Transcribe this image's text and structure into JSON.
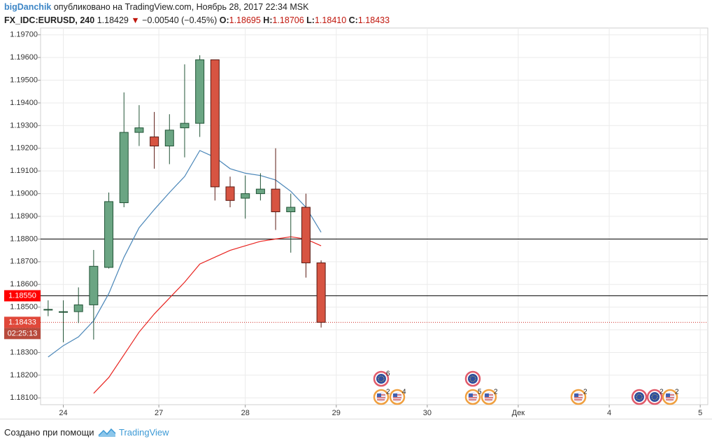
{
  "header": {
    "author": "bigDanchik",
    "published": "опубликовано на TradingView.com, Ноябрь 28, 2017 22:34 MSK",
    "symbol": "FX_IDC:EURUSD, 240",
    "last": "1.18429",
    "arrow": "▼",
    "change": "−0.00540 (−0.45%)",
    "open_label": "O:",
    "open": "1.18695",
    "high_label": "H:",
    "high": "1.18706",
    "low_label": "L:",
    "low": "1.18410",
    "close_label": "C:",
    "close": "1.18433"
  },
  "chart_data": {
    "type": "candlestick",
    "open": [
      1.1849,
      1.1848,
      1.1848,
      1.1851,
      1.18675,
      1.1896,
      1.1927,
      1.1925,
      1.1921,
      1.1929,
      1.1931,
      1.1959,
      1.1903,
      1.1898,
      1.19,
      1.1902,
      1.1892,
      1.1894,
      1.18695
    ],
    "high": [
      1.1853,
      1.1853,
      1.18587,
      1.18752,
      1.19005,
      1.19446,
      1.1939,
      1.1936,
      1.1935,
      1.1957,
      1.1961,
      1.1959,
      1.19075,
      1.1908,
      1.1909,
      1.192,
      1.19,
      1.19,
      1.18706
    ],
    "low": [
      1.1846,
      1.18345,
      1.1843,
      1.18357,
      1.1867,
      1.1894,
      1.1921,
      1.1911,
      1.1913,
      1.1916,
      1.1925,
      1.1897,
      1.1894,
      1.1889,
      1.1897,
      1.1884,
      1.1874,
      1.1863,
      1.1841
    ],
    "close": [
      1.1849,
      1.1848,
      1.1851,
      1.1868,
      1.18965,
      1.1927,
      1.1929,
      1.1921,
      1.1928,
      1.1931,
      1.1959,
      1.1903,
      1.1897,
      1.19,
      1.1902,
      1.1892,
      1.1894,
      1.18695,
      1.18433
    ],
    "up_color": "#6ba583",
    "up_border": "#225437",
    "down_color": "#d75442",
    "down_border": "#5b1a13",
    "series": [
      {
        "color": "#4a86b8",
        "values": [
          1.1828,
          1.1833,
          1.18369,
          1.1844,
          1.1856,
          1.1872,
          1.1885,
          1.1893,
          1.19005,
          1.19076,
          1.1919,
          1.1916,
          1.1911,
          1.1909,
          1.1908,
          1.1906,
          1.1901,
          1.1894,
          1.1883
        ]
      },
      {
        "color": "#e8231f",
        "values": [
          null,
          null,
          null,
          1.1812,
          1.1819,
          1.1829,
          1.1839,
          1.1847,
          1.1854,
          1.1861,
          1.1869,
          1.1872,
          1.1875,
          1.1877,
          1.1879,
          1.188,
          1.1881,
          1.188,
          1.1877
        ]
      }
    ],
    "hlines": [
      {
        "value": 1.188,
        "color": "#000000"
      },
      {
        "value": 1.1855,
        "color": "#000000"
      }
    ],
    "last_line": {
      "value": 1.18433,
      "color": "#d0302a"
    },
    "price_labels": [
      {
        "value": 1.1855,
        "label": "1.18550",
        "color": "#ff0000"
      },
      {
        "value": 1.18433,
        "label": "1.18433",
        "color": "#e0483a"
      }
    ],
    "countdown": "02:25:13",
    "ylim": [
      1.1807,
      1.1973
    ],
    "yticks": [
      {
        "value": 1.181,
        "label": "1.18100"
      },
      {
        "value": 1.182,
        "label": "1.18200"
      },
      {
        "value": 1.183,
        "label": "1.18300"
      },
      {
        "value": 1.184,
        "label": "1.18400"
      },
      {
        "value": 1.185,
        "label": "1.18500"
      },
      {
        "value": 1.186,
        "label": "1.18600"
      },
      {
        "value": 1.187,
        "label": "1.18700"
      },
      {
        "value": 1.188,
        "label": "1.18800"
      },
      {
        "value": 1.189,
        "label": "1.18900"
      },
      {
        "value": 1.19,
        "label": "1.19000"
      },
      {
        "value": 1.191,
        "label": "1.19100"
      },
      {
        "value": 1.192,
        "label": "1.19200"
      },
      {
        "value": 1.193,
        "label": "1.19300"
      },
      {
        "value": 1.194,
        "label": "1.19400"
      },
      {
        "value": 1.195,
        "label": "1.19500"
      },
      {
        "value": 1.196,
        "label": "1.19600"
      },
      {
        "value": 1.197,
        "label": "1.19700"
      }
    ],
    "xlim": [
      -0.5,
      43.5
    ],
    "xticks": [
      {
        "value": 1,
        "label": "24"
      },
      {
        "value": 7.3,
        "label": "27"
      },
      {
        "value": 13,
        "label": "28"
      },
      {
        "value": 19,
        "label": "29"
      },
      {
        "value": 25,
        "label": "30"
      },
      {
        "value": 31,
        "label": "Дек"
      },
      {
        "value": 37,
        "label": "4"
      },
      {
        "value": 43,
        "label": "5"
      }
    ],
    "grid": true,
    "event_badges": [
      "6",
      "2",
      "4",
      "5",
      "2",
      "2",
      "2",
      "2"
    ]
  },
  "footer": {
    "made_with": "Создано при помощи",
    "brand": "TradingView"
  }
}
